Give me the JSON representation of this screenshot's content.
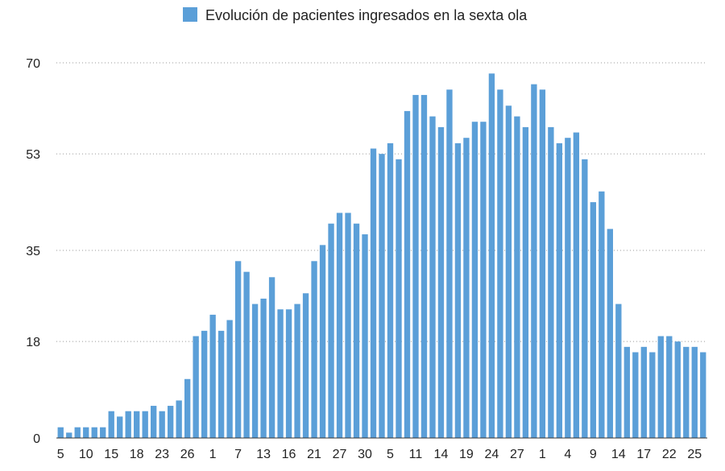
{
  "chart_data": {
    "type": "bar",
    "legend": {
      "label": "Evolución de pacientes ingresados en la sexta ola",
      "position": "top"
    },
    "series": [
      {
        "name": "Evolución de pacientes ingresados en la sexta ola",
        "color": "#5b9fd8",
        "values": [
          2,
          1,
          2,
          2,
          2,
          2,
          5,
          4,
          5,
          5,
          5,
          6,
          5,
          6,
          7,
          11,
          19,
          20,
          23,
          20,
          22,
          33,
          31,
          25,
          26,
          30,
          24,
          24,
          25,
          27,
          33,
          36,
          40,
          42,
          42,
          40,
          38,
          54,
          53,
          55,
          52,
          61,
          64,
          64,
          60,
          58,
          65,
          55,
          56,
          59,
          59,
          68,
          65,
          62,
          60,
          58,
          66,
          65,
          58,
          55,
          56,
          57,
          52,
          44,
          46,
          39,
          25,
          17,
          16,
          17,
          16,
          19,
          19,
          18,
          17,
          17,
          16
        ]
      }
    ],
    "x_tick_labels": [
      "5",
      "10",
      "15",
      "18",
      "23",
      "26",
      "1",
      "7",
      "13",
      "16",
      "21",
      "27",
      "30",
      "5",
      "11",
      "14",
      "19",
      "24",
      "27",
      "1",
      "4",
      "9",
      "14",
      "17",
      "22",
      "25"
    ],
    "x_tick_indices": [
      0,
      3,
      6,
      9,
      12,
      15,
      18,
      21,
      24,
      27,
      30,
      33,
      36,
      39,
      42,
      45,
      48,
      51,
      54,
      57,
      60,
      63,
      66,
      69,
      72,
      75
    ],
    "y_ticks": [
      0,
      18,
      35,
      53,
      70
    ],
    "ylim": [
      0,
      70
    ],
    "grid": true
  }
}
